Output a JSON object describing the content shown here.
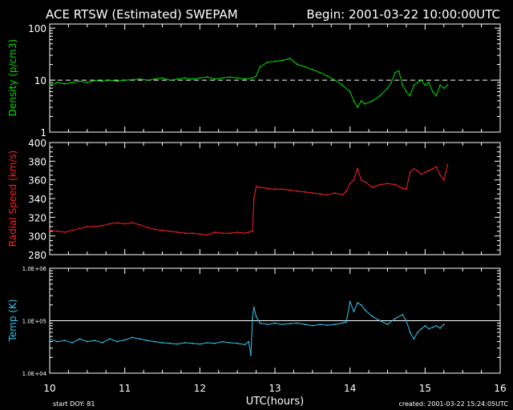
{
  "header": {
    "title": "ACE RTSW (Estimated) SWEPAM",
    "begin": "Begin: 2001-03-22 10:00:00UTC"
  },
  "footer": {
    "start_doy": "start DOY:  81",
    "created": "created: 2001-03-22 15:24:05UTC"
  },
  "colors": {
    "background": "#000000",
    "axes": "#ffffff",
    "density": "#00e000",
    "speed": "#ff2020",
    "temp": "#33c6f0"
  },
  "chart_data": {
    "type": "line",
    "xlabel": "UTC(hours)",
    "xlim": [
      10,
      16
    ],
    "xticks": [
      "10",
      "11",
      "12",
      "13",
      "14",
      "15",
      "16"
    ],
    "panels": [
      {
        "id": "density",
        "ylabel": "Density (p/cm3)",
        "scale": "log",
        "ylim": [
          1,
          120
        ],
        "yticks": [
          {
            "v": 1,
            "label": "1"
          },
          {
            "v": 10,
            "label": "10"
          },
          {
            "v": 100,
            "label": "100"
          }
        ],
        "reference_line": {
          "value": 10,
          "style": "dashed"
        },
        "series": [
          {
            "color_key": "density",
            "x": [
              10.0,
              10.1,
              10.2,
              10.3,
              10.4,
              10.5,
              10.6,
              10.7,
              10.8,
              10.9,
              11.0,
              11.1,
              11.2,
              11.3,
              11.4,
              11.5,
              11.6,
              11.7,
              11.8,
              11.9,
              12.0,
              12.1,
              12.2,
              12.3,
              12.4,
              12.5,
              12.6,
              12.7,
              12.75,
              12.8,
              12.9,
              13.0,
              13.1,
              13.2,
              13.3,
              13.4,
              13.5,
              13.6,
              13.7,
              13.8,
              13.9,
              14.0,
              14.05,
              14.1,
              14.15,
              14.2,
              14.3,
              14.4,
              14.5,
              14.55,
              14.6,
              14.65,
              14.7,
              14.75,
              14.8,
              14.85,
              14.9,
              14.95,
              15.0,
              15.05,
              15.1,
              15.15,
              15.2,
              15.25,
              15.3
            ],
            "y": [
              8.0,
              9.0,
              8.5,
              9.0,
              9.5,
              9.0,
              9.8,
              9.5,
              10.0,
              9.5,
              10.0,
              10.2,
              10.5,
              10.0,
              10.5,
              11.0,
              10.0,
              10.5,
              11.0,
              10.5,
              11.0,
              11.5,
              10.5,
              11.0,
              11.5,
              11.0,
              10.5,
              11.0,
              12.0,
              18.0,
              22.0,
              23.0,
              24.0,
              26.0,
              20.0,
              18.0,
              16.0,
              14.0,
              12.0,
              10.0,
              8.0,
              6.0,
              4.0,
              3.0,
              4.0,
              3.5,
              4.0,
              5.0,
              7.0,
              9.0,
              14.0,
              15.0,
              8.0,
              6.0,
              5.0,
              8.0,
              9.0,
              10.0,
              8.0,
              9.0,
              6.0,
              5.0,
              8.0,
              7.0,
              8.0
            ]
          }
        ]
      },
      {
        "id": "speed",
        "ylabel": "Radial Speed (km/s)",
        "scale": "linear",
        "ylim": [
          280,
          400
        ],
        "yticks": [
          {
            "v": 280,
            "label": "280"
          },
          {
            "v": 300,
            "label": "300"
          },
          {
            "v": 320,
            "label": "320"
          },
          {
            "v": 340,
            "label": "340"
          },
          {
            "v": 360,
            "label": "360"
          },
          {
            "v": 380,
            "label": "380"
          },
          {
            "v": 400,
            "label": "400"
          }
        ],
        "series": [
          {
            "color_key": "speed",
            "x": [
              10.0,
              10.1,
              10.2,
              10.3,
              10.4,
              10.5,
              10.6,
              10.7,
              10.8,
              10.9,
              11.0,
              11.1,
              11.2,
              11.3,
              11.4,
              11.5,
              11.6,
              11.7,
              11.8,
              11.9,
              12.0,
              12.1,
              12.2,
              12.3,
              12.4,
              12.5,
              12.6,
              12.65,
              12.7,
              12.72,
              12.75,
              12.8,
              12.9,
              13.0,
              13.1,
              13.2,
              13.3,
              13.4,
              13.5,
              13.6,
              13.7,
              13.8,
              13.9,
              13.95,
              14.0,
              14.05,
              14.1,
              14.15,
              14.2,
              14.3,
              14.4,
              14.5,
              14.6,
              14.7,
              14.75,
              14.8,
              14.85,
              14.9,
              14.95,
              15.0,
              15.05,
              15.1,
              15.15,
              15.2,
              15.25,
              15.3
            ],
            "y": [
              306,
              305,
              304,
              306,
              308,
              310,
              310,
              311,
              313,
              314,
              313,
              314,
              312,
              309,
              307,
              306,
              305,
              304,
              303,
              303,
              302,
              301,
              304,
              303,
              303,
              304,
              303,
              304,
              305,
              340,
              353,
              352,
              351,
              350,
              350,
              349,
              348,
              347,
              346,
              345,
              344,
              346,
              344,
              348,
              356,
              360,
              372,
              360,
              358,
              352,
              355,
              356,
              355,
              351,
              350,
              368,
              372,
              370,
              366,
              368,
              370,
              372,
              374,
              365,
              360,
              376
            ]
          }
        ]
      },
      {
        "id": "temp",
        "ylabel": "Temp (K)",
        "scale": "log",
        "ylim": [
          10000,
          1000000
        ],
        "yticks": [
          {
            "v": 10000,
            "label": "1.0E+04"
          },
          {
            "v": 100000,
            "label": "1.0E+05"
          },
          {
            "v": 1000000,
            "label": "1.0E+06"
          }
        ],
        "reference_line": {
          "value": 100000,
          "style": "solid"
        },
        "series": [
          {
            "color_key": "temp",
            "x": [
              10.0,
              10.1,
              10.2,
              10.3,
              10.4,
              10.5,
              10.6,
              10.7,
              10.8,
              10.9,
              11.0,
              11.1,
              11.2,
              11.3,
              11.4,
              11.5,
              11.6,
              11.7,
              11.8,
              11.9,
              12.0,
              12.1,
              12.2,
              12.3,
              12.4,
              12.5,
              12.6,
              12.65,
              12.68,
              12.7,
              12.72,
              12.75,
              12.8,
              12.9,
              13.0,
              13.1,
              13.2,
              13.3,
              13.4,
              13.5,
              13.6,
              13.7,
              13.8,
              13.9,
              13.95,
              14.0,
              14.05,
              14.1,
              14.15,
              14.2,
              14.3,
              14.4,
              14.5,
              14.6,
              14.7,
              14.75,
              14.8,
              14.85,
              14.9,
              14.95,
              15.0,
              15.05,
              15.1,
              15.15,
              15.2,
              15.25
            ],
            "y": [
              45000,
              40000,
              42000,
              38000,
              45000,
              40000,
              42000,
              38000,
              45000,
              40000,
              43000,
              48000,
              45000,
              42000,
              40000,
              38000,
              37000,
              36000,
              38000,
              37000,
              36000,
              38000,
              37000,
              40000,
              38000,
              37000,
              35000,
              40000,
              22000,
              110000,
              180000,
              120000,
              90000,
              85000,
              90000,
              85000,
              88000,
              90000,
              85000,
              80000,
              85000,
              82000,
              85000,
              90000,
              95000,
              230000,
              150000,
              220000,
              200000,
              160000,
              120000,
              100000,
              85000,
              110000,
              130000,
              100000,
              60000,
              45000,
              60000,
              70000,
              80000,
              70000,
              75000,
              80000,
              72000,
              85000
            ]
          }
        ]
      }
    ]
  }
}
